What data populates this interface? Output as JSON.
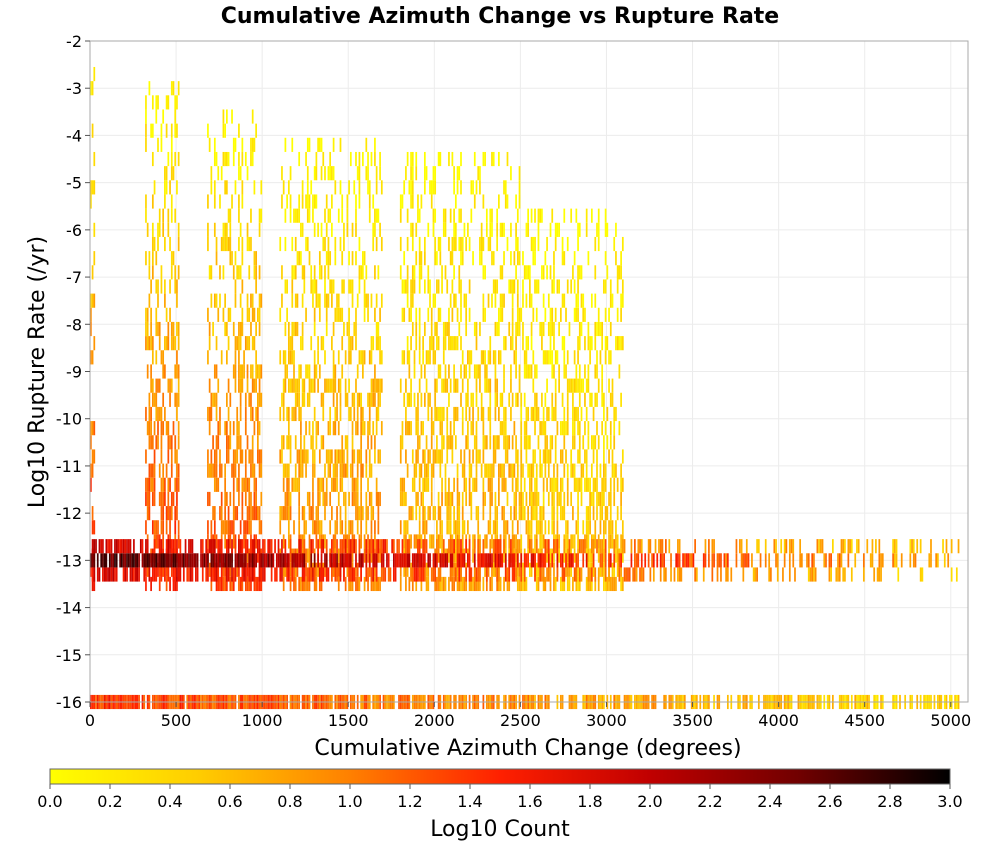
{
  "chart_data": {
    "type": "heatmap",
    "title": "Cumulative Azimuth Change vs Rupture Rate",
    "xlabel": "Cumulative Azimuth Change (degrees)",
    "ylabel": "Log10 Rupture Rate (/yr)",
    "xlim": [
      0,
      5100
    ],
    "ylim": [
      -16,
      -2
    ],
    "x_ticks": [
      0,
      500,
      1000,
      1500,
      2000,
      2500,
      3000,
      3500,
      4000,
      4500,
      5000
    ],
    "y_ticks": [
      -2,
      -3,
      -4,
      -5,
      -6,
      -7,
      -8,
      -9,
      -10,
      -11,
      -12,
      -13,
      -14,
      -15,
      -16
    ],
    "grid": true,
    "colorbar": {
      "label": "Log10 Count",
      "range": [
        0.0,
        3.0
      ],
      "ticks": [
        "0.0",
        "0.2",
        "0.4",
        "0.6",
        "0.8",
        "1.0",
        "1.2",
        "1.4",
        "1.6",
        "1.8",
        "2.0",
        "2.2",
        "2.4",
        "2.6",
        "2.8",
        "3.0"
      ],
      "colors": [
        "#ffff00",
        "#ffcc00",
        "#ff8000",
        "#ff2000",
        "#c00000",
        "#700000",
        "#000000"
      ],
      "position": "bottom"
    },
    "bin_size": {
      "x": 10,
      "y": 0.3
    },
    "data_summary": "Log10 count per bin; densest band near log rate -13 spanning 0-5000 degrees, a second band at -16, and columnar clusters near 0, 350-500, 700-1000, 1100-1700 and 1800-2500 degrees",
    "clusters": [
      {
        "x": [
          0,
          30
        ],
        "y": [
          -13.5,
          -2.2
        ],
        "value": 1.5
      },
      {
        "x": [
          320,
          520
        ],
        "y": [
          -13.5,
          -2.8
        ],
        "value": 1.4
      },
      {
        "x": [
          680,
          1000
        ],
        "y": [
          -13.5,
          -3.3
        ],
        "value": 1.3
      },
      {
        "x": [
          1100,
          1700
        ],
        "y": [
          -13.5,
          -4.0
        ],
        "value": 1.0
      },
      {
        "x": [
          1800,
          2500
        ],
        "y": [
          -13.5,
          -4.2
        ],
        "value": 0.8
      },
      {
        "x": [
          2500,
          3100
        ],
        "y": [
          -13.5,
          -5.5
        ],
        "value": 0.6
      }
    ],
    "bands": [
      {
        "y": -13.0,
        "x": [
          0,
          5050
        ],
        "peak_value": 2.6
      },
      {
        "y": -16.0,
        "x": [
          0,
          5050
        ],
        "peak_value": 1.4
      }
    ]
  }
}
